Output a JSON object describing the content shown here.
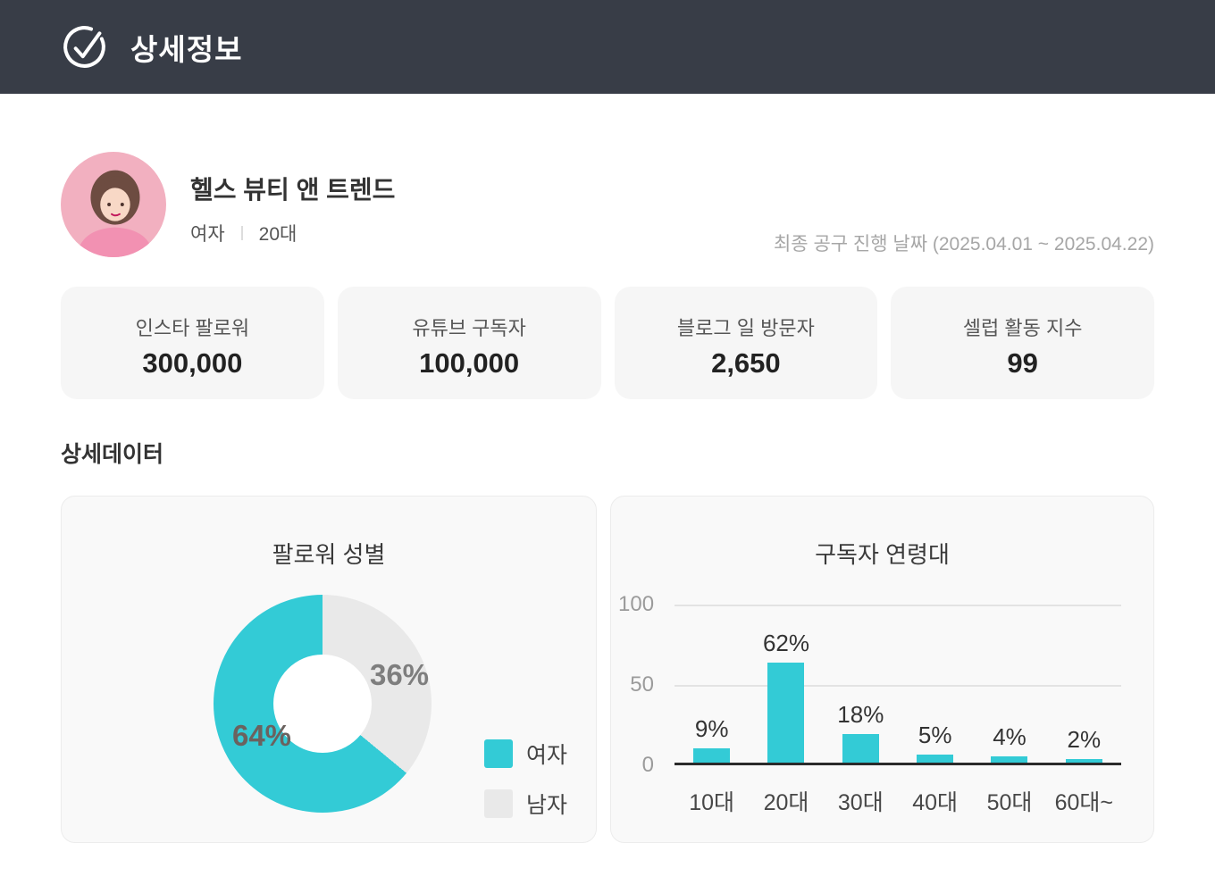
{
  "header": {
    "title": "상세정보"
  },
  "profile": {
    "name": "헬스 뷰티 앤 트렌드",
    "gender": "여자",
    "age_group": "20대",
    "campaign_period": "최종 공구 진행 날짜 (2025.04.01 ~ 2025.04.22)"
  },
  "stats": [
    {
      "label": "인스타 팔로워",
      "value": "300,000"
    },
    {
      "label": "유튜브 구독자",
      "value": "100,000"
    },
    {
      "label": "블로그 일 방문자",
      "value": "2,650"
    },
    {
      "label": "셀럽 활동 지수",
      "value": "99"
    }
  ],
  "section_title": "상세데이터",
  "colors": {
    "accent_cyan": "#33cbd6",
    "neutral_gray": "#e9e9e9",
    "header_bg": "#383d47"
  },
  "chart_data": [
    {
      "type": "pie",
      "donut": true,
      "title": "팔로워 성별",
      "labels": [
        "여자",
        "남자"
      ],
      "values": [
        64,
        36
      ],
      "data_labels": [
        "64%",
        "36%"
      ],
      "colors": [
        "#33cbd6",
        "#e9e9e9"
      ],
      "legend_position": "bottom-right"
    },
    {
      "type": "bar",
      "title": "구독자 연령대",
      "categories": [
        "10대",
        "20대",
        "30대",
        "40대",
        "50대",
        "60대~"
      ],
      "values": [
        9,
        62,
        18,
        5,
        4,
        2
      ],
      "value_labels": [
        "9%",
        "62%",
        "18%",
        "5%",
        "4%",
        "2%"
      ],
      "ylim": [
        0,
        100
      ],
      "yticks": [
        "0",
        "50",
        "100"
      ],
      "bar_color": "#33cbd6",
      "grid": true,
      "legend_position": "none"
    }
  ]
}
